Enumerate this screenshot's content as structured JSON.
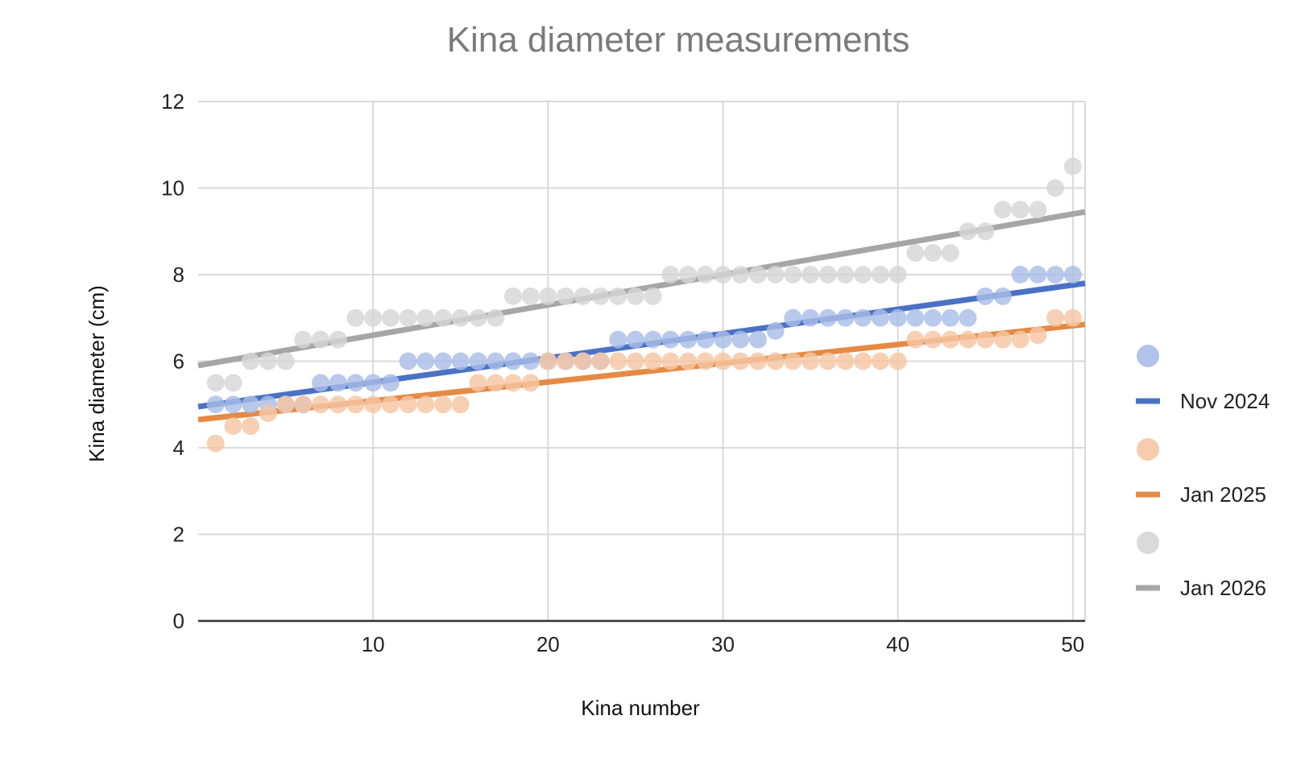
{
  "chart_data": {
    "type": "scatter",
    "title": "Kina diameter measurements",
    "xlabel": "Kina number",
    "ylabel": "Kina diameter (cm)",
    "xlim": [
      0,
      50.7
    ],
    "ylim": [
      0,
      12
    ],
    "xticks": [
      10,
      20,
      30,
      40,
      50
    ],
    "yticks": [
      0,
      2,
      4,
      6,
      8,
      10,
      12
    ],
    "grid": true,
    "legend_position": "right",
    "series": [
      {
        "name": "Nov 2024",
        "point_color": "#a9bde8",
        "line_color": "#4a72c4",
        "x": [
          1,
          2,
          3,
          4,
          5,
          6,
          7,
          8,
          9,
          10,
          11,
          12,
          13,
          14,
          15,
          16,
          17,
          18,
          19,
          20,
          21,
          22,
          23,
          24,
          25,
          26,
          27,
          28,
          29,
          30,
          31,
          32,
          33,
          34,
          35,
          36,
          37,
          38,
          39,
          40,
          41,
          42,
          43,
          44,
          45,
          46,
          47,
          48,
          49,
          50
        ],
        "values": [
          5,
          5,
          5,
          5,
          5,
          5,
          5.5,
          5.5,
          5.5,
          5.5,
          5.5,
          6,
          6,
          6,
          6,
          6,
          6,
          6,
          6,
          6,
          6,
          6,
          6,
          6.5,
          6.5,
          6.5,
          6.5,
          6.5,
          6.5,
          6.5,
          6.5,
          6.5,
          6.7,
          7,
          7,
          7,
          7,
          7,
          7,
          7,
          7,
          7,
          7,
          7,
          7.5,
          7.5,
          8,
          8,
          8,
          8
        ],
        "trendline": [
          4.95,
          7.8
        ]
      },
      {
        "name": "Jan 2025",
        "point_color": "#f5c6a3",
        "line_color": "#e58a45",
        "x": [
          1,
          2,
          3,
          4,
          5,
          6,
          7,
          8,
          9,
          10,
          11,
          12,
          13,
          14,
          15,
          16,
          17,
          18,
          19,
          20,
          21,
          22,
          23,
          24,
          25,
          26,
          27,
          28,
          29,
          30,
          31,
          32,
          33,
          34,
          35,
          36,
          37,
          38,
          39,
          40,
          41,
          42,
          43,
          44,
          45,
          46,
          47,
          48,
          49,
          50
        ],
        "values": [
          4.1,
          4.5,
          4.5,
          4.8,
          5,
          5,
          5,
          5,
          5,
          5,
          5,
          5,
          5,
          5,
          5,
          5.5,
          5.5,
          5.5,
          5.5,
          6,
          6,
          6,
          6,
          6,
          6,
          6,
          6,
          6,
          6,
          6,
          6,
          6,
          6,
          6,
          6,
          6,
          6,
          6,
          6,
          6,
          6.5,
          6.5,
          6.5,
          6.5,
          6.5,
          6.5,
          6.5,
          6.6,
          7,
          7
        ],
        "trendline": [
          4.65,
          6.85
        ]
      },
      {
        "name": "Jan 2026",
        "point_color": "#d6d6d6",
        "line_color": "#a6a6a6",
        "x": [
          1,
          2,
          3,
          4,
          5,
          6,
          7,
          8,
          9,
          10,
          11,
          12,
          13,
          14,
          15,
          16,
          17,
          18,
          19,
          20,
          21,
          22,
          23,
          24,
          25,
          26,
          27,
          28,
          29,
          30,
          31,
          32,
          33,
          34,
          35,
          36,
          37,
          38,
          39,
          40,
          41,
          42,
          43,
          44,
          45,
          46,
          47,
          48,
          49,
          50
        ],
        "values": [
          5.5,
          5.5,
          6,
          6,
          6,
          6.5,
          6.5,
          6.5,
          7,
          7,
          7,
          7,
          7,
          7,
          7,
          7,
          7,
          7.5,
          7.5,
          7.5,
          7.5,
          7.5,
          7.5,
          7.5,
          7.5,
          7.5,
          8,
          8,
          8,
          8,
          8,
          8,
          8,
          8,
          8,
          8,
          8,
          8,
          8,
          8,
          8.5,
          8.5,
          8.5,
          9,
          9,
          9.5,
          9.5,
          9.5,
          10,
          10.5
        ],
        "trendline": [
          5.9,
          9.45
        ]
      }
    ]
  }
}
